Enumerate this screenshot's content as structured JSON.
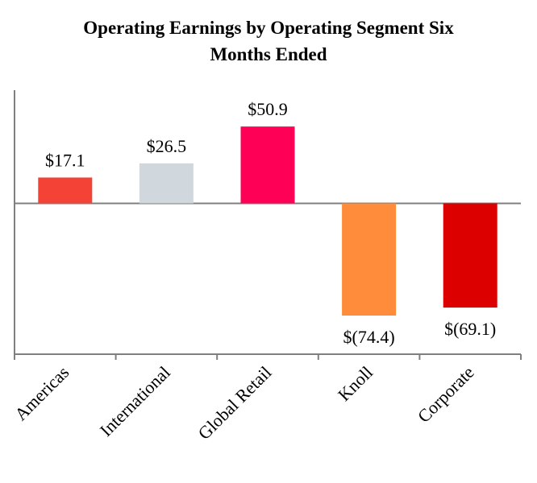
{
  "chart_data": {
    "type": "bar",
    "title_line1": "Operating Earnings by Operating Segment Six",
    "title_line2": "Months Ended",
    "categories": [
      "Americas",
      "International",
      "Global Retail",
      "Knoll",
      "Corporate"
    ],
    "values": [
      17.1,
      26.5,
      50.9,
      -74.4,
      -69.1
    ],
    "labels": [
      "$17.1",
      "$26.5",
      "$50.9",
      "$(74.4)",
      "$(69.1)"
    ],
    "colors": [
      "#f44336",
      "#d0d8de",
      "#ff0057",
      "#ff8c3a",
      "#dc0000"
    ],
    "ylim": [
      -100,
      75
    ],
    "xlabel": "",
    "ylabel": "",
    "grid": false
  }
}
